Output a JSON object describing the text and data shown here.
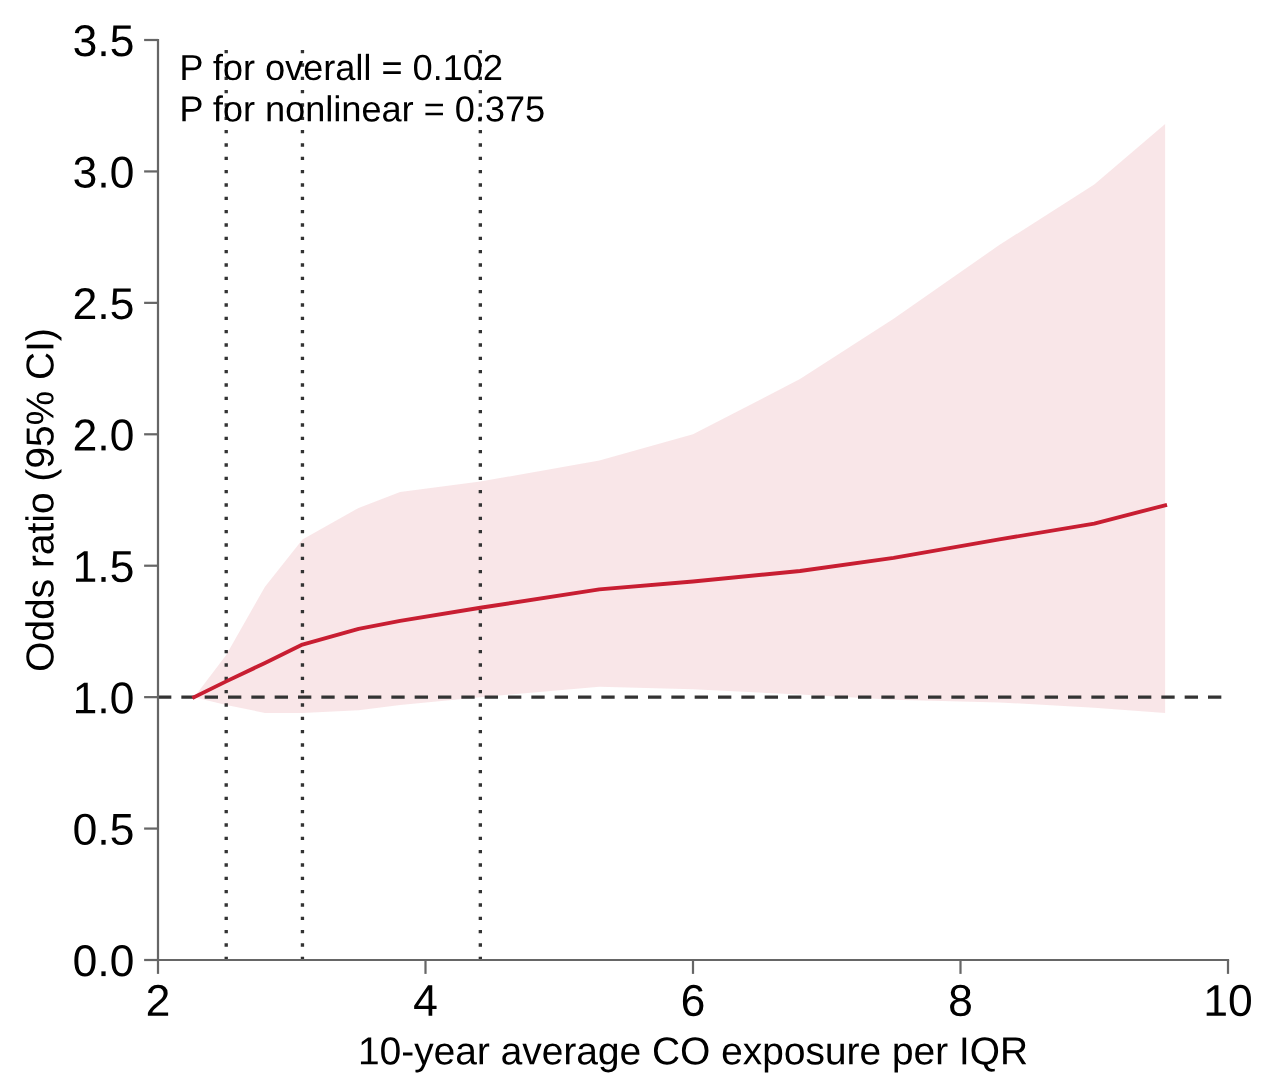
{
  "chart_data": {
    "type": "line",
    "xlabel": "10-year average CO exposure per IQR",
    "ylabel": "Odds ratio (95% CI)",
    "annotations": [
      "P for overall = 0.102",
      "P for nonlinear = 0.375"
    ],
    "xlim": [
      2,
      10
    ],
    "xticks": [
      2,
      4,
      6,
      8,
      10
    ],
    "ylim": [
      0,
      3.5
    ],
    "yticks": [
      {
        "value": 0,
        "label": "0.0"
      },
      0.5,
      {
        "value": 1,
        "label": "1.0"
      },
      1.5,
      {
        "value": 2,
        "label": "2.0"
      },
      2.5,
      {
        "value": 3,
        "label": "3.0"
      },
      3.5
    ],
    "x": [
      2.27,
      2.51,
      2.8,
      3.08,
      3.5,
      3.81,
      4.41,
      5.3,
      6.0,
      6.8,
      7.5,
      8.29,
      9.0,
      9.53
    ],
    "series": [
      {
        "color": "#c81e32",
        "values": [
          1.0,
          1.06,
          1.13,
          1.2,
          1.26,
          1.29,
          1.34,
          1.41,
          1.44,
          1.48,
          1.53,
          1.6,
          1.66,
          1.73
        ],
        "lower": [
          1.0,
          0.97,
          0.94,
          0.94,
          0.95,
          0.97,
          1.0,
          1.04,
          1.03,
          1.01,
          0.99,
          0.98,
          0.96,
          0.94
        ],
        "upper": [
          1.0,
          1.16,
          1.42,
          1.6,
          1.72,
          1.78,
          1.82,
          1.9,
          2.0,
          2.21,
          2.44,
          2.72,
          2.95,
          3.18
        ]
      }
    ],
    "ref_lines": [
      {
        "axis": "y",
        "value": 1.0,
        "line_style": "dashed",
        "color": "#333333"
      },
      {
        "axis": "x",
        "value": 2.51,
        "line_style": "dotted",
        "color": "#333333"
      },
      {
        "axis": "x",
        "value": 3.08,
        "line_style": "dotted",
        "color": "#333333"
      },
      {
        "axis": "x",
        "value": 4.41,
        "line_style": "dotted",
        "color": "#333333"
      }
    ],
    "grid": false,
    "marker": "none",
    "line_style": "solid"
  }
}
